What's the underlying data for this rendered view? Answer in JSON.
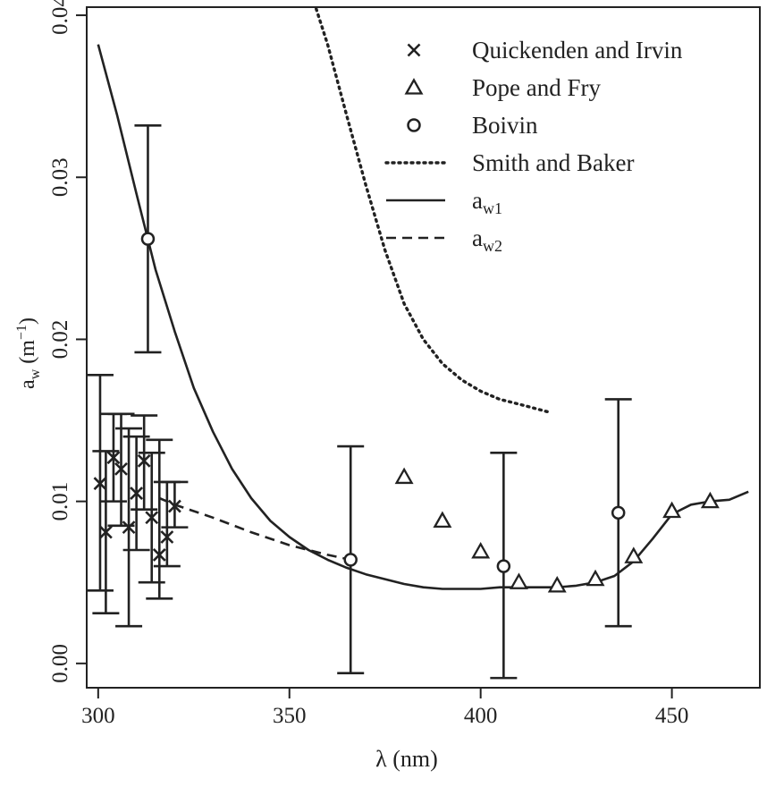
{
  "chart_data": {
    "type": "scatter",
    "xlabel": "λ (nm)",
    "ylabel_base": "a",
    "ylabel_sub": "w",
    "ylabel_unit": "(m",
    "ylabel_exp": "−1",
    "ylabel_close": ")",
    "xlim": [
      297,
      473
    ],
    "ylim": [
      -0.0015,
      0.0405
    ],
    "xticks": [
      300,
      350,
      400,
      450
    ],
    "xtick_labels": [
      "300",
      "350",
      "400",
      "450"
    ],
    "yticks": [
      0,
      0.01,
      0.02,
      0.03,
      0.04
    ],
    "ytick_labels": [
      "0.00",
      "0.01",
      "0.02",
      "0.03",
      "0.04"
    ],
    "grid": false,
    "legend_position": "top-right",
    "colors": {
      "ink": "#222222",
      "background": "#ffffff"
    },
    "legend": [
      {
        "label": "Quickenden and Irvin",
        "marker": "cross"
      },
      {
        "label": "Pope and Fry",
        "marker": "triangle"
      },
      {
        "label": "Boivin",
        "marker": "circle"
      },
      {
        "label": "Smith and Baker",
        "line": "dotted"
      },
      {
        "label": "a",
        "sub": "w1",
        "line": "solid"
      },
      {
        "label": "a",
        "sub": "w2",
        "line": "dashed"
      }
    ],
    "series": [
      {
        "name": "Quickenden and Irvin",
        "marker": "cross",
        "points": [
          {
            "x": 300.5,
            "y": 0.0111,
            "ylo": 0.0045,
            "yhi": 0.0178
          },
          {
            "x": 302,
            "y": 0.0081,
            "ylo": 0.0031,
            "yhi": 0.0131
          },
          {
            "x": 304,
            "y": 0.0127,
            "ylo": 0.01,
            "yhi": 0.0154
          },
          {
            "x": 306,
            "y": 0.012,
            "ylo": 0.0085,
            "yhi": 0.0154
          },
          {
            "x": 308,
            "y": 0.0084,
            "ylo": 0.0023,
            "yhi": 0.0145
          },
          {
            "x": 310,
            "y": 0.0105,
            "ylo": 0.007,
            "yhi": 0.014
          },
          {
            "x": 312,
            "y": 0.0125,
            "ylo": 0.0095,
            "yhi": 0.0153
          },
          {
            "x": 314,
            "y": 0.009,
            "ylo": 0.005,
            "yhi": 0.013
          },
          {
            "x": 316,
            "y": 0.0067,
            "ylo": 0.004,
            "yhi": 0.0138
          },
          {
            "x": 318,
            "y": 0.0078,
            "ylo": 0.006,
            "yhi": 0.0112
          },
          {
            "x": 320,
            "y": 0.0097,
            "ylo": 0.0084,
            "yhi": 0.0112
          }
        ]
      },
      {
        "name": "Pope and Fry",
        "marker": "triangle",
        "points": [
          {
            "x": 380,
            "y": 0.0115
          },
          {
            "x": 390,
            "y": 0.0088
          },
          {
            "x": 400,
            "y": 0.0069
          },
          {
            "x": 410,
            "y": 0.005
          },
          {
            "x": 420,
            "y": 0.0048
          },
          {
            "x": 430,
            "y": 0.0052
          },
          {
            "x": 440,
            "y": 0.0066
          },
          {
            "x": 450,
            "y": 0.0094
          },
          {
            "x": 460,
            "y": 0.01
          }
        ]
      },
      {
        "name": "Boivin",
        "marker": "circle",
        "points": [
          {
            "x": 313,
            "y": 0.0262,
            "ylo": 0.0192,
            "yhi": 0.0332
          },
          {
            "x": 366,
            "y": 0.0064,
            "ylo": -0.0006,
            "yhi": 0.0134
          },
          {
            "x": 406,
            "y": 0.006,
            "ylo": -0.0009,
            "yhi": 0.013
          },
          {
            "x": 436,
            "y": 0.0093,
            "ylo": 0.0023,
            "yhi": 0.0163
          }
        ]
      },
      {
        "name": "Smith and Baker",
        "line": "dotted",
        "x": [
          355.5,
          360,
          365,
          370,
          375,
          380,
          385,
          390,
          395,
          400,
          405,
          410,
          418
        ],
        "y": [
          0.0415,
          0.0382,
          0.0338,
          0.0295,
          0.0255,
          0.0222,
          0.02,
          0.0185,
          0.0175,
          0.0168,
          0.0163,
          0.016,
          0.0155
        ]
      },
      {
        "name": "a_w1",
        "line": "solid",
        "x": [
          300,
          305,
          310,
          315,
          320,
          325,
          330,
          335,
          340,
          345,
          350,
          355,
          360,
          365,
          370,
          375,
          380,
          385,
          390,
          395,
          400,
          405,
          410,
          415,
          420,
          425,
          430,
          435,
          440,
          445,
          450,
          455,
          460,
          465,
          470
        ],
        "y": [
          0.0382,
          0.0338,
          0.029,
          0.0243,
          0.0205,
          0.017,
          0.0143,
          0.012,
          0.0102,
          0.0088,
          0.0078,
          0.007,
          0.0064,
          0.0059,
          0.0055,
          0.0052,
          0.0049,
          0.0047,
          0.0046,
          0.0046,
          0.0046,
          0.0047,
          0.0047,
          0.0047,
          0.0047,
          0.0048,
          0.005,
          0.0054,
          0.0063,
          0.0077,
          0.0092,
          0.0098,
          0.01,
          0.0101,
          0.0106
        ]
      },
      {
        "name": "a_w2",
        "line": "dashed",
        "x": [
          316,
          320,
          330,
          340,
          350,
          360,
          366
        ],
        "y": [
          0.0102,
          0.0098,
          0.009,
          0.0081,
          0.0073,
          0.0067,
          0.0064
        ]
      }
    ]
  }
}
